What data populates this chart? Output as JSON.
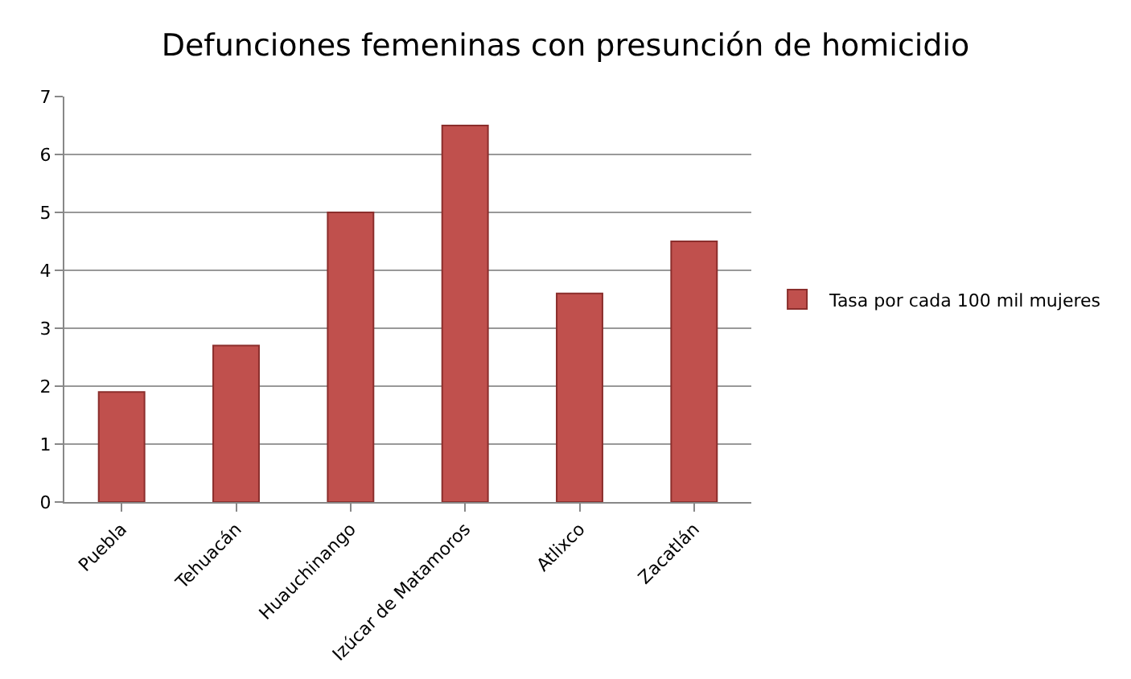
{
  "chart_data": {
    "type": "bar",
    "title": "Defunciones femeninas con presunción de homicidio",
    "categories": [
      "Puebla",
      "Tehuacán",
      "Huauchinango",
      "Izúcar de Matamoros",
      "Atlixco",
      "Zacatlán"
    ],
    "series": [
      {
        "name": "Tasa por cada 100 mil mujeres",
        "color": "#c0504d",
        "values": [
          1.9,
          2.7,
          5.0,
          6.5,
          3.6,
          4.5
        ]
      }
    ],
    "ylim": [
      0,
      7
    ],
    "yticks": [
      0,
      1,
      2,
      3,
      4,
      5,
      6,
      7
    ],
    "grid": "y",
    "legend": "right"
  }
}
